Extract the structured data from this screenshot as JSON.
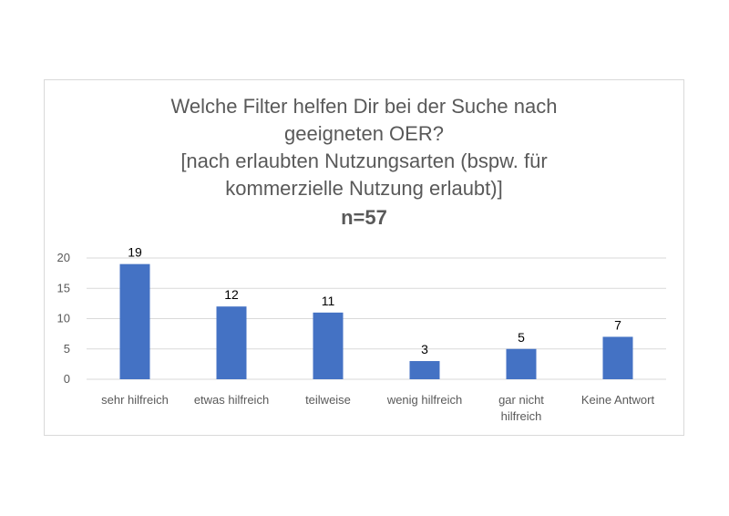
{
  "chart_data": {
    "type": "bar",
    "title_lines": [
      "Welche Filter helfen Dir bei der Suche nach",
      "geeigneten OER?",
      "[nach erlaubten Nutzungsarten (bspw. für",
      "kommerzielle Nutzung erlaubt)]"
    ],
    "subtitle": "n=57",
    "categories": [
      [
        "sehr hilfreich"
      ],
      [
        "etwas hilfreich"
      ],
      [
        "teilweise"
      ],
      [
        "wenig hilfreich"
      ],
      [
        "gar nicht",
        "hilfreich"
      ],
      [
        "Keine Antwort"
      ]
    ],
    "values": [
      19,
      12,
      11,
      3,
      5,
      7
    ],
    "yticks": [
      0,
      5,
      10,
      15,
      20
    ],
    "ylim": [
      0,
      20
    ],
    "grid": true,
    "bar_color": "#4472c4",
    "grid_color": "#d9d9d9"
  }
}
